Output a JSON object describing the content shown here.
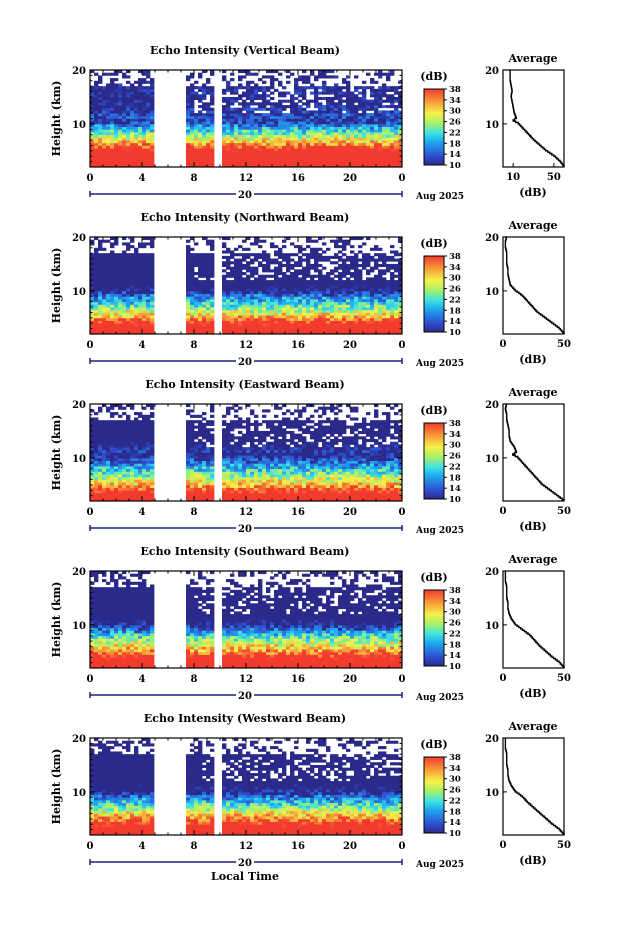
{
  "figure": {
    "footer_xlabel": "Local Time",
    "date_label": "Aug 2025",
    "day_label": "20"
  },
  "chart_data": [
    {
      "type": "heatmap",
      "title": "Echo Intensity (Vertical Beam)",
      "ylabel": "Height (km)",
      "xlim": [
        0,
        24
      ],
      "ylim": [
        2,
        20
      ],
      "xticks": [
        "0",
        "4",
        "8",
        "12",
        "16",
        "20",
        "0"
      ],
      "yticks": [
        "10",
        "20"
      ],
      "colorbar": {
        "unit": "(dB)",
        "range": [
          10,
          38
        ],
        "ticks": [
          "38",
          "34",
          "30",
          "26",
          "22",
          "18",
          "14",
          "10"
        ]
      },
      "data_gaps_hours": [
        [
          5.0,
          7.2
        ],
        [
          9.6,
          9.9
        ],
        [
          10.0,
          10.1
        ]
      ],
      "profile": {
        "title": "Average",
        "xlabel": "(dB)",
        "xlim": [
          0,
          60
        ],
        "xticks": [
          "10",
          "50"
        ],
        "yticks": [
          "10",
          "20"
        ],
        "height": [
          2,
          3,
          4,
          5,
          6,
          7,
          8,
          9,
          10,
          10.5,
          11,
          12,
          13,
          14,
          15,
          16,
          17,
          18,
          19,
          20
        ],
        "db": [
          60,
          56,
          50,
          42,
          36,
          30,
          25,
          20,
          15,
          10,
          13,
          11,
          10,
          9,
          8,
          9,
          8,
          7,
          7,
          7
        ]
      }
    },
    {
      "type": "heatmap",
      "title": "Echo Intensity (Northward Beam)",
      "ylabel": "Height (km)",
      "xlim": [
        0,
        24
      ],
      "ylim": [
        2,
        20
      ],
      "xticks": [
        "0",
        "4",
        "8",
        "12",
        "16",
        "20",
        "0"
      ],
      "yticks": [
        "10",
        "20"
      ],
      "colorbar": {
        "unit": "(dB)",
        "range": [
          10,
          38
        ],
        "ticks": [
          "38",
          "34",
          "30",
          "26",
          "22",
          "18",
          "14",
          "10"
        ]
      },
      "data_gaps_hours": [
        [
          5.0,
          7.2
        ],
        [
          9.6,
          9.9
        ],
        [
          10.0,
          10.1
        ]
      ],
      "profile": {
        "title": "Average",
        "xlabel": "(dB)",
        "xlim": [
          0,
          50
        ],
        "xticks": [
          "0",
          "50"
        ],
        "yticks": [
          "10",
          "20"
        ],
        "height": [
          2,
          3,
          4,
          5,
          6,
          7,
          8,
          9,
          10,
          11,
          12,
          13,
          14,
          15,
          16,
          17,
          18,
          19,
          20
        ],
        "db": [
          50,
          46,
          40,
          34,
          28,
          24,
          20,
          16,
          10,
          6,
          5,
          4,
          4,
          3,
          3,
          3,
          2,
          2,
          3
        ]
      }
    },
    {
      "type": "heatmap",
      "title": "Echo Intensity (Eastward Beam)",
      "ylabel": "Height (km)",
      "xlim": [
        0,
        24
      ],
      "ylim": [
        2,
        20
      ],
      "xticks": [
        "0",
        "4",
        "8",
        "12",
        "16",
        "20",
        "0"
      ],
      "yticks": [
        "10",
        "20"
      ],
      "colorbar": {
        "unit": "(dB)",
        "range": [
          10,
          38
        ],
        "ticks": [
          "38",
          "34",
          "30",
          "26",
          "22",
          "18",
          "14",
          "10"
        ]
      },
      "data_gaps_hours": [
        [
          5.0,
          7.2
        ],
        [
          9.6,
          9.9
        ],
        [
          10.0,
          10.1
        ]
      ],
      "profile": {
        "title": "Average",
        "xlabel": "(dB)",
        "xlim": [
          0,
          50
        ],
        "xticks": [
          "0",
          "50"
        ],
        "yticks": [
          "10",
          "20"
        ],
        "height": [
          2,
          3,
          4,
          5,
          6,
          7,
          8,
          9,
          10,
          10.5,
          11,
          12,
          13,
          14,
          15,
          16,
          17,
          18,
          19,
          20
        ],
        "db": [
          50,
          44,
          38,
          32,
          28,
          24,
          20,
          16,
          12,
          8,
          11,
          9,
          6,
          5,
          5,
          4,
          3,
          3,
          2,
          3
        ]
      }
    },
    {
      "type": "heatmap",
      "title": "Echo Intensity (Southward Beam)",
      "ylabel": "Height (km)",
      "xlim": [
        0,
        24
      ],
      "ylim": [
        2,
        20
      ],
      "xticks": [
        "0",
        "4",
        "8",
        "12",
        "16",
        "20",
        "0"
      ],
      "yticks": [
        "10",
        "20"
      ],
      "colorbar": {
        "unit": "(dB)",
        "range": [
          10,
          38
        ],
        "ticks": [
          "38",
          "34",
          "30",
          "26",
          "22",
          "18",
          "14",
          "10"
        ]
      },
      "data_gaps_hours": [
        [
          5.0,
          7.2
        ],
        [
          9.6,
          9.9
        ],
        [
          10.0,
          10.1
        ]
      ],
      "profile": {
        "title": "Average",
        "xlabel": "(dB)",
        "xlim": [
          0,
          50
        ],
        "xticks": [
          "0",
          "50"
        ],
        "yticks": [
          "10",
          "20"
        ],
        "height": [
          2,
          3,
          4,
          5,
          6,
          7,
          8,
          9,
          10,
          11,
          12,
          13,
          14,
          15,
          16,
          17,
          18,
          19,
          20
        ],
        "db": [
          50,
          46,
          40,
          35,
          30,
          26,
          22,
          16,
          10,
          7,
          5,
          4,
          4,
          3,
          3,
          3,
          2,
          2,
          2
        ]
      }
    },
    {
      "type": "heatmap",
      "title": "Echo Intensity (Westward Beam)",
      "ylabel": "Height (km)",
      "xlim": [
        0,
        24
      ],
      "ylim": [
        2,
        20
      ],
      "xticks": [
        "0",
        "4",
        "8",
        "12",
        "16",
        "20",
        "0"
      ],
      "yticks": [
        "10",
        "20"
      ],
      "colorbar": {
        "unit": "(dB)",
        "range": [
          10,
          38
        ],
        "ticks": [
          "38",
          "34",
          "30",
          "26",
          "22",
          "18",
          "14",
          "10"
        ]
      },
      "data_gaps_hours": [
        [
          5.0,
          7.2
        ],
        [
          9.6,
          9.9
        ],
        [
          10.0,
          10.1
        ]
      ],
      "profile": {
        "title": "Average",
        "xlabel": "(dB)",
        "xlim": [
          0,
          50
        ],
        "xticks": [
          "0",
          "50"
        ],
        "yticks": [
          "10",
          "20"
        ],
        "height": [
          2,
          3,
          4,
          5,
          6,
          7,
          8,
          9,
          10,
          11,
          12,
          13,
          14,
          15,
          16,
          17,
          18,
          19,
          20
        ],
        "db": [
          50,
          46,
          40,
          35,
          30,
          25,
          20,
          16,
          10,
          7,
          5,
          4,
          4,
          3,
          3,
          3,
          2,
          2,
          2
        ]
      }
    }
  ]
}
